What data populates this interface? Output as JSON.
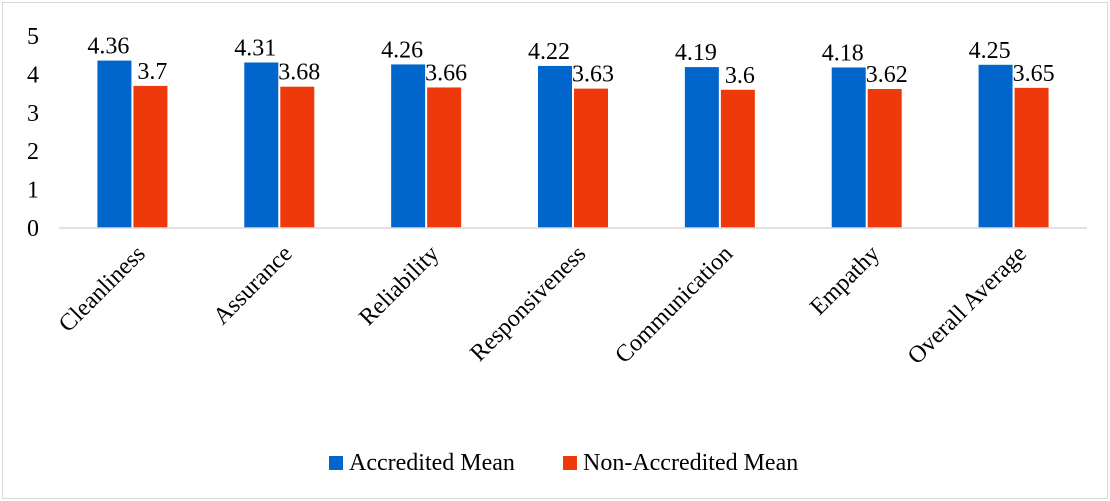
{
  "chart_data": {
    "type": "bar",
    "title": "",
    "xlabel": "",
    "ylabel": "",
    "categories": [
      "Cleanliness",
      "Assurance",
      "Reliability",
      "Responsiveness",
      "Communication",
      "Empathy",
      "Overall Average"
    ],
    "series": [
      {
        "name": "Accredited Mean",
        "color": "#0066cc",
        "values": [
          4.36,
          4.31,
          4.26,
          4.22,
          4.19,
          4.18,
          4.25
        ]
      },
      {
        "name": "Non-Accredited Mean",
        "color": "#ee3a0a",
        "values": [
          3.7,
          3.68,
          3.66,
          3.63,
          3.6,
          3.62,
          3.65
        ]
      }
    ],
    "yticks": [
      0,
      1,
      2,
      3,
      4,
      5
    ],
    "ylim": [
      0,
      5
    ],
    "grid": false,
    "legend_position": "bottom"
  }
}
